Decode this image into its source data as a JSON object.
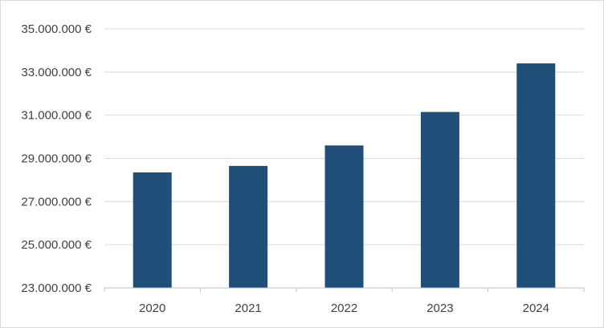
{
  "chart_data": {
    "type": "bar",
    "categories": [
      "2020",
      "2021",
      "2022",
      "2023",
      "2024"
    ],
    "values": [
      28350000,
      28650000,
      29600000,
      31150000,
      33400000
    ],
    "title": "",
    "xlabel": "",
    "ylabel": "",
    "ylim": [
      23000000,
      35000000
    ],
    "ytick_step": 2000000,
    "ytick_labels": [
      "23.000.000 €",
      "25.000.000 €",
      "27.000.000 €",
      "29.000.000 €",
      "31.000.000 €",
      "33.000.000 €",
      "35.000.000 €"
    ],
    "grid": true,
    "legend": "none",
    "colors": {
      "bar": "#1f4e79",
      "grid": "#d9d9d9",
      "axis": "#bfbfbf",
      "text": "#404040"
    }
  }
}
